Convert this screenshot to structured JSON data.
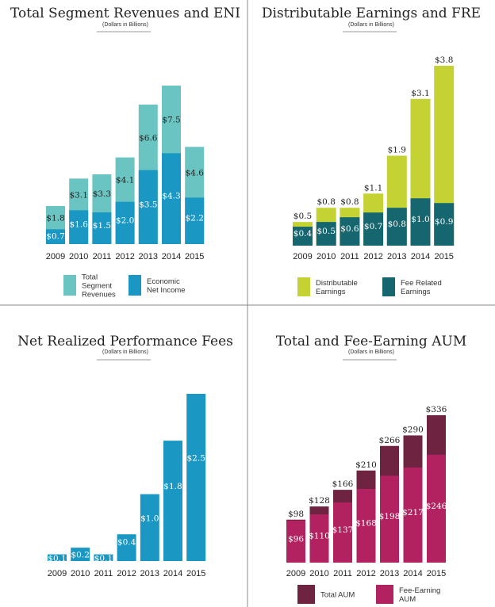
{
  "chart_data": [
    {
      "type": "bar",
      "stacked": true,
      "title": "Total Segment Revenues and ENI",
      "subtitle": "(Dollars in Billions)",
      "categories": [
        "2009",
        "2010",
        "2011",
        "2012",
        "2013",
        "2014",
        "2015"
      ],
      "series": [
        {
          "name": "Economic Net Income",
          "values": [
            0.7,
            1.6,
            1.5,
            2.0,
            3.5,
            4.3,
            2.2
          ],
          "labels": [
            "$0.7",
            "$1.6",
            "$1.5",
            "$2.0",
            "$3.5",
            "$4.3",
            "$2.2"
          ],
          "color": "#1a98c3",
          "label_color": "#ffffff"
        },
        {
          "name": "Total Segment Revenues",
          "values": [
            1.8,
            3.1,
            3.3,
            4.1,
            6.6,
            7.5,
            4.6
          ],
          "labels": [
            "$1.8",
            "$3.1",
            "$3.3",
            "$4.1",
            "$6.6",
            "$7.5",
            "$4.6"
          ],
          "color": "#6ac4c2",
          "label_color": "#222222"
        }
      ],
      "mode": "overlap",
      "top_labels": false,
      "legend": [
        {
          "label": "Total Segment Revenues",
          "lines": [
            "Total",
            "Segment",
            "Revenues"
          ],
          "color": "#6ac4c2"
        },
        {
          "label": "Economic Net Income",
          "lines": [
            "Economic",
            "Net Income"
          ],
          "color": "#1a98c3"
        }
      ]
    },
    {
      "type": "bar",
      "stacked": true,
      "title": "Distributable Earnings and FRE",
      "subtitle": "(Dollars in Billions)",
      "categories": [
        "2009",
        "2010",
        "2011",
        "2012",
        "2013",
        "2014",
        "2015"
      ],
      "series": [
        {
          "name": "Fee Related Earnings",
          "values": [
            0.4,
            0.5,
            0.6,
            0.7,
            0.8,
            1.0,
            0.9
          ],
          "labels": [
            "$0.4",
            "$0.5",
            "$0.6",
            "$0.7",
            "$0.8",
            "$1.0",
            "$0.9"
          ],
          "color": "#166670",
          "label_color": "#ffffff"
        },
        {
          "name": "Distributable Earnings",
          "values": [
            0.5,
            0.8,
            0.8,
            1.1,
            1.9,
            3.1,
            3.8
          ],
          "labels": [
            "$0.5",
            "$0.8",
            "$0.8",
            "$1.1",
            "$1.9",
            "$3.1",
            "$3.8"
          ],
          "color": "#c4d233",
          "label_color": "#222222"
        }
      ],
      "mode": "overlap",
      "top_labels": true,
      "legend": [
        {
          "label": "Distributable Earnings",
          "lines": [
            "Distributable",
            "Earnings"
          ],
          "color": "#c4d233"
        },
        {
          "label": "Fee Related Earnings",
          "lines": [
            "Fee Related",
            "Earnings"
          ],
          "color": "#166670"
        }
      ]
    },
    {
      "type": "bar",
      "title": "Net Realized Performance Fees",
      "subtitle": "(Dollars in Billions)",
      "categories": [
        "2009",
        "2010",
        "2011",
        "2012",
        "2013",
        "2014",
        "2015"
      ],
      "series": [
        {
          "name": "Net Realized Performance Fees",
          "values": [
            0.1,
            0.2,
            0.1,
            0.4,
            1.0,
            1.8,
            2.5
          ],
          "labels": [
            "$0.1",
            "$0.2",
            "$0.1",
            "$0.4",
            "$1.0",
            "$1.8",
            "$2.5"
          ],
          "color": "#1a98c3",
          "label_color": "#ffffff"
        }
      ],
      "mode": "single",
      "top_labels": false,
      "legend": []
    },
    {
      "type": "bar",
      "stacked": true,
      "title": "Total and Fee-Earning AUM",
      "subtitle": "(Dollars in Billions)",
      "categories": [
        "2009",
        "2010",
        "2011",
        "2012",
        "2013",
        "2014",
        "2015"
      ],
      "series": [
        {
          "name": "Fee-Earning AUM",
          "values": [
            96,
            110,
            137,
            168,
            198,
            217,
            246
          ],
          "labels": [
            "$96",
            "$110",
            "$137",
            "$168",
            "$198",
            "$217",
            "$246"
          ],
          "color": "#b32260",
          "label_color": "#ffffff"
        },
        {
          "name": "Total AUM",
          "values": [
            98,
            128,
            166,
            210,
            266,
            290,
            336
          ],
          "labels": [
            "$98",
            "$128",
            "$166",
            "$210",
            "$266",
            "$290",
            "$336"
          ],
          "color": "#6e2440",
          "label_color": "#222222"
        }
      ],
      "mode": "overlap",
      "top_labels": true,
      "legend": [
        {
          "label": "Total AUM",
          "lines": [
            "Total AUM"
          ],
          "color": "#6e2440"
        },
        {
          "label": "Fee-Earning AUM",
          "lines": [
            "Fee-Earning",
            "AUM"
          ],
          "color": "#b32260"
        }
      ]
    }
  ]
}
